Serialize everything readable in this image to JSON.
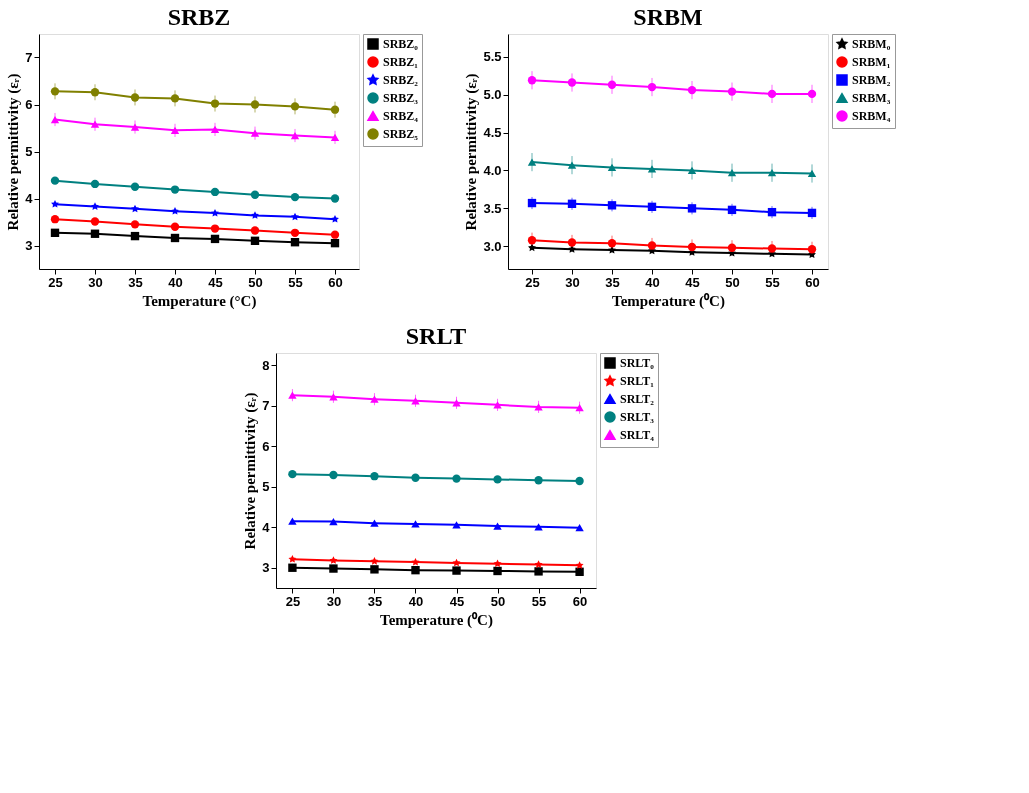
{
  "chart_data": [
    {
      "type": "line",
      "title": "SRBZ",
      "xlabel": "Temperature (°C)",
      "ylabel": "Relative permittivity (εᵣ)",
      "x": [
        25,
        30,
        35,
        40,
        45,
        50,
        55,
        60
      ],
      "xlim": [
        23,
        63
      ],
      "xticks": [
        25,
        30,
        35,
        40,
        45,
        50,
        55,
        60
      ],
      "ylim": [
        2.5,
        7.5
      ],
      "yticks": [
        3,
        4,
        5,
        6,
        7
      ],
      "legend": "right",
      "grid": false,
      "series": [
        {
          "name": "SRBZ₀",
          "color": "#000000",
          "marker": "square",
          "values": [
            3.27,
            3.25,
            3.2,
            3.16,
            3.14,
            3.1,
            3.07,
            3.05
          ]
        },
        {
          "name": "SRBZ₁",
          "color": "#ff0000",
          "marker": "circle",
          "values": [
            3.56,
            3.51,
            3.45,
            3.4,
            3.36,
            3.32,
            3.27,
            3.23
          ]
        },
        {
          "name": "SRBZ₂",
          "color": "#0000ff",
          "marker": "star",
          "values": [
            3.88,
            3.83,
            3.78,
            3.73,
            3.69,
            3.64,
            3.61,
            3.56
          ]
        },
        {
          "name": "SRBZ₃",
          "color": "#008080",
          "marker": "circle",
          "values": [
            4.38,
            4.31,
            4.25,
            4.19,
            4.14,
            4.08,
            4.03,
            4.0
          ]
        },
        {
          "name": "SRBZ₄",
          "color": "#ff00ff",
          "marker": "triangle",
          "values": [
            5.68,
            5.58,
            5.52,
            5.45,
            5.47,
            5.39,
            5.34,
            5.3
          ],
          "errors": [
            0.14,
            0.14,
            0.14,
            0.14,
            0.14,
            0.14,
            0.14,
            0.14
          ]
        },
        {
          "name": "SRBZ₅",
          "color": "#808000",
          "marker": "circle",
          "values": [
            6.28,
            6.26,
            6.15,
            6.13,
            6.02,
            6.0,
            5.96,
            5.89
          ],
          "errors": [
            0.17,
            0.17,
            0.17,
            0.17,
            0.17,
            0.17,
            0.17,
            0.17
          ]
        }
      ]
    },
    {
      "type": "line",
      "title": "SRBM",
      "xlabel": "Temperature (⁰C)",
      "ylabel": "Relative permittivity (εᵣ)",
      "x": [
        25,
        30,
        35,
        40,
        45,
        50,
        55,
        60
      ],
      "xlim": [
        22,
        62
      ],
      "xticks": [
        25,
        30,
        35,
        40,
        45,
        50,
        55,
        60
      ],
      "ylim": [
        2.7,
        5.8
      ],
      "yticks": [
        {
          "value": 3,
          "label": "3.0"
        },
        3.5,
        {
          "value": 4,
          "label": "4.0"
        },
        4.5,
        {
          "value": 5,
          "label": "5.0"
        },
        5.5
      ],
      "legend": "right",
      "grid": false,
      "series": [
        {
          "name": "SRBM₀",
          "color": "#000000",
          "marker": "star",
          "values": [
            2.98,
            2.96,
            2.95,
            2.94,
            2.92,
            2.91,
            2.9,
            2.89
          ]
        },
        {
          "name": "SRBM₁",
          "color": "#ff0000",
          "marker": "circle",
          "values": [
            3.08,
            3.05,
            3.04,
            3.01,
            2.99,
            2.98,
            2.97,
            2.96
          ],
          "errors": [
            0.1,
            0.1,
            0.1,
            0.1,
            0.1,
            0.1,
            0.1,
            0.1
          ]
        },
        {
          "name": "SRBM₂",
          "color": "#0000ff",
          "marker": "square",
          "values": [
            3.57,
            3.56,
            3.54,
            3.52,
            3.5,
            3.48,
            3.45,
            3.44
          ],
          "errors": [
            0.08,
            0.08,
            0.08,
            0.08,
            0.08,
            0.08,
            0.08,
            0.08
          ]
        },
        {
          "name": "SRBM₃",
          "color": "#008080",
          "marker": "triangle",
          "values": [
            4.11,
            4.07,
            4.04,
            4.02,
            4.0,
            3.97,
            3.97,
            3.96
          ],
          "errors": [
            0.12,
            0.12,
            0.12,
            0.12,
            0.12,
            0.12,
            0.12,
            0.12
          ]
        },
        {
          "name": "SRBM₄",
          "color": "#ff00ff",
          "marker": "circle",
          "values": [
            5.19,
            5.16,
            5.13,
            5.1,
            5.06,
            5.04,
            5.01,
            5.01
          ],
          "errors": [
            0.12,
            0.12,
            0.12,
            0.12,
            0.12,
            0.12,
            0.12,
            0.12
          ]
        }
      ]
    },
    {
      "type": "line",
      "title": "SRLT",
      "xlabel": "Temperature (⁰C)",
      "ylabel": "Relative permittivity (εᵣ)",
      "x": [
        25,
        30,
        35,
        40,
        45,
        50,
        55,
        60
      ],
      "xlim": [
        23,
        62
      ],
      "xticks": [
        25,
        30,
        35,
        40,
        45,
        50,
        55,
        60
      ],
      "ylim": [
        2.5,
        8.3
      ],
      "yticks": [
        3,
        4,
        5,
        6,
        7,
        8
      ],
      "legend": "right",
      "grid": false,
      "series": [
        {
          "name": "SRLT₀",
          "color": "#000000",
          "marker": "square",
          "values": [
            3.0,
            2.98,
            2.96,
            2.94,
            2.93,
            2.92,
            2.91,
            2.9
          ]
        },
        {
          "name": "SRLT₁",
          "color": "#ff0000",
          "marker": "star",
          "values": [
            3.21,
            3.18,
            3.16,
            3.14,
            3.12,
            3.1,
            3.08,
            3.06
          ]
        },
        {
          "name": "SRLT₂",
          "color": "#0000ff",
          "marker": "triangle",
          "values": [
            4.15,
            4.14,
            4.1,
            4.08,
            4.06,
            4.03,
            4.01,
            3.99
          ]
        },
        {
          "name": "SRLT₃",
          "color": "#008080",
          "marker": "circle",
          "values": [
            5.31,
            5.29,
            5.26,
            5.22,
            5.2,
            5.18,
            5.16,
            5.14
          ]
        },
        {
          "name": "SRLT₄",
          "color": "#ff00ff",
          "marker": "triangle",
          "values": [
            7.26,
            7.22,
            7.16,
            7.12,
            7.07,
            7.02,
            6.97,
            6.95
          ],
          "errors": [
            0.15,
            0.15,
            0.15,
            0.15,
            0.15,
            0.15,
            0.15,
            0.15
          ]
        }
      ]
    }
  ]
}
